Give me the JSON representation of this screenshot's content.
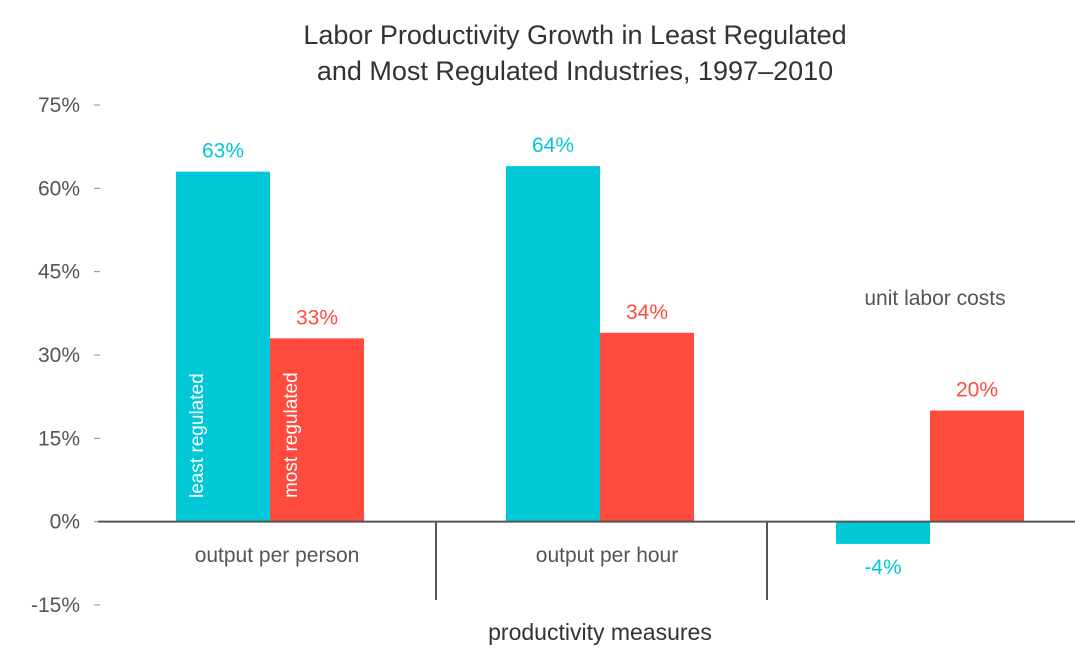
{
  "chart_data": {
    "type": "bar",
    "title": [
      "Labor Productivity Growth in Least Regulated",
      "and Most Regulated Industries, 1997–2010"
    ],
    "xlabel": "productivity measures",
    "ylabel": "",
    "ylim": [
      -15,
      75
    ],
    "yticks": [
      -15,
      0,
      15,
      30,
      45,
      60,
      75
    ],
    "ytick_labels": [
      "-15%",
      "0%",
      "15%",
      "30%",
      "45%",
      "60%",
      "75%"
    ],
    "categories": [
      "output per person",
      "output per hour",
      "unit labor costs"
    ],
    "series": [
      {
        "name": "least regulated",
        "values": [
          63,
          64,
          -4
        ],
        "labels": [
          "63%",
          "64%",
          "-4%"
        ],
        "color": "#00C8D7"
      },
      {
        "name": "most regulated",
        "values": [
          33,
          34,
          20
        ],
        "labels": [
          "33%",
          "34%",
          "20%"
        ],
        "color": "#FF4B3E"
      }
    ],
    "grid": false,
    "legend": "labels inside first-category bars"
  }
}
